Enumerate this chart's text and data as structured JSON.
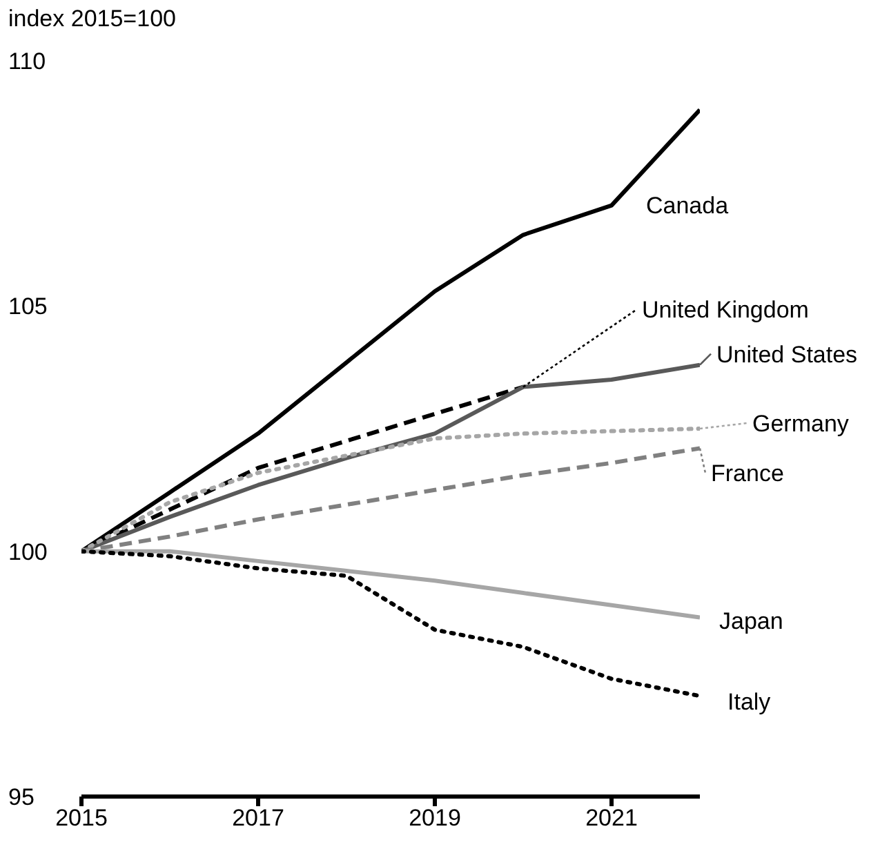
{
  "chart_data": {
    "type": "line",
    "ylabel": "index 2015=100",
    "x": [
      2015,
      2016,
      2017,
      2018,
      2019,
      2020,
      2021,
      2022
    ],
    "xlim": [
      2015,
      2022
    ],
    "xticks": [
      2015,
      2017,
      2019,
      2021
    ],
    "ylim": [
      95,
      110
    ],
    "yticks": [
      95,
      100,
      105,
      110
    ],
    "grid": false,
    "legend": "right",
    "marker": "none",
    "series": [
      {
        "name": "Canada",
        "color": "#000000",
        "line_style": "solid",
        "values": [
          100,
          101.2,
          102.4,
          103.85,
          105.3,
          106.45,
          107.05,
          109.0
        ]
      },
      {
        "name": "United Kingdom",
        "color": "#000000",
        "line_style": "dashed",
        "values": [
          100,
          100.85,
          101.7,
          102.25,
          102.8,
          103.35,
          null,
          null
        ]
      },
      {
        "name": "United States",
        "color": "#595959",
        "line_style": "solid",
        "values": [
          100,
          100.7,
          101.35,
          101.9,
          102.4,
          103.35,
          103.5,
          103.8
        ]
      },
      {
        "name": "Germany",
        "color": "#a6a6a6",
        "line_style": "dotted",
        "values": [
          100,
          101.0,
          101.6,
          101.95,
          102.3,
          102.4,
          102.45,
          102.5
        ]
      },
      {
        "name": "France",
        "color": "#808080",
        "line_style": "dashed",
        "values": [
          100,
          100.3,
          100.65,
          100.95,
          101.25,
          101.55,
          101.8,
          102.1
        ]
      },
      {
        "name": "Japan",
        "color": "#a6a6a6",
        "line_style": "solid",
        "values": [
          100,
          100.0,
          99.8,
          99.6,
          99.4,
          99.15,
          98.9,
          98.65
        ]
      },
      {
        "name": "Italy",
        "color": "#000000",
        "line_style": "dotted",
        "values": [
          100,
          99.9,
          99.65,
          99.5,
          98.4,
          98.05,
          97.4,
          97.05
        ]
      }
    ]
  }
}
